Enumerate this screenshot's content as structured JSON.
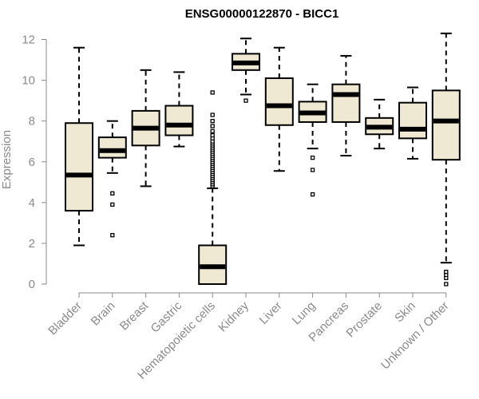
{
  "chart_data": {
    "type": "boxplot",
    "title": "ENSG00000122870 - BICC1",
    "xlabel": "",
    "ylabel": "Expression",
    "ylim": [
      0,
      12.5
    ],
    "yticks": [
      0,
      2,
      4,
      6,
      8,
      10,
      12
    ],
    "categories": [
      "Bladder",
      "Brain",
      "Breast",
      "Gastric",
      "Hematopoietic cells",
      "Kidney",
      "Liver",
      "Lung",
      "Pancreas",
      "Prostate",
      "Skin",
      "Unknown / Other"
    ],
    "boxes": [
      {
        "category": "Bladder",
        "whislo": 1.9,
        "q1": 3.6,
        "med": 5.35,
        "q3": 7.9,
        "whishi": 11.6,
        "fliers": []
      },
      {
        "category": "Brain",
        "whislo": 5.45,
        "q1": 6.2,
        "med": 6.55,
        "q3": 7.2,
        "whishi": 8.0,
        "fliers": [
          4.45,
          3.9,
          2.4
        ]
      },
      {
        "category": "Breast",
        "whislo": 4.8,
        "q1": 6.8,
        "med": 7.65,
        "q3": 8.5,
        "whishi": 10.5,
        "fliers": []
      },
      {
        "category": "Gastric",
        "whislo": 6.75,
        "q1": 7.3,
        "med": 7.8,
        "q3": 8.75,
        "whishi": 10.4,
        "fliers": []
      },
      {
        "category": "Hematopoietic cells",
        "whislo": 0.0,
        "q1": 0.0,
        "med": 0.85,
        "q3": 1.9,
        "whishi": 4.7,
        "fliers": [
          4.8,
          4.9,
          5.0,
          5.1,
          5.2,
          5.3,
          5.4,
          5.5,
          5.6,
          5.7,
          5.8,
          5.9,
          6.0,
          6.1,
          6.2,
          6.3,
          6.4,
          6.5,
          6.6,
          6.7,
          6.8,
          6.9,
          7.0,
          7.15,
          7.3,
          7.5,
          7.75,
          8.0,
          8.3,
          9.4
        ]
      },
      {
        "category": "Kidney",
        "whislo": 9.3,
        "q1": 10.5,
        "med": 10.85,
        "q3": 11.3,
        "whishi": 12.05,
        "fliers": [
          9.0
        ]
      },
      {
        "category": "Liver",
        "whislo": 5.55,
        "q1": 7.8,
        "med": 8.75,
        "q3": 10.1,
        "whishi": 11.6,
        "fliers": []
      },
      {
        "category": "Lung",
        "whislo": 6.65,
        "q1": 7.95,
        "med": 8.4,
        "q3": 8.95,
        "whishi": 9.8,
        "fliers": [
          6.2,
          5.6,
          4.4
        ]
      },
      {
        "category": "Pancreas",
        "whislo": 6.3,
        "q1": 7.95,
        "med": 9.3,
        "q3": 9.8,
        "whishi": 11.2,
        "fliers": []
      },
      {
        "category": "Prostate",
        "whislo": 6.65,
        "q1": 7.35,
        "med": 7.7,
        "q3": 8.15,
        "whishi": 9.05,
        "fliers": []
      },
      {
        "category": "Skin",
        "whislo": 6.15,
        "q1": 7.15,
        "med": 7.6,
        "q3": 8.9,
        "whishi": 9.65,
        "fliers": []
      },
      {
        "category": "Unknown / Other",
        "whislo": 1.05,
        "q1": 6.1,
        "med": 8.0,
        "q3": 9.5,
        "whishi": 12.3,
        "fliers": [
          0.0,
          0.3,
          0.45,
          0.6
        ]
      }
    ]
  }
}
